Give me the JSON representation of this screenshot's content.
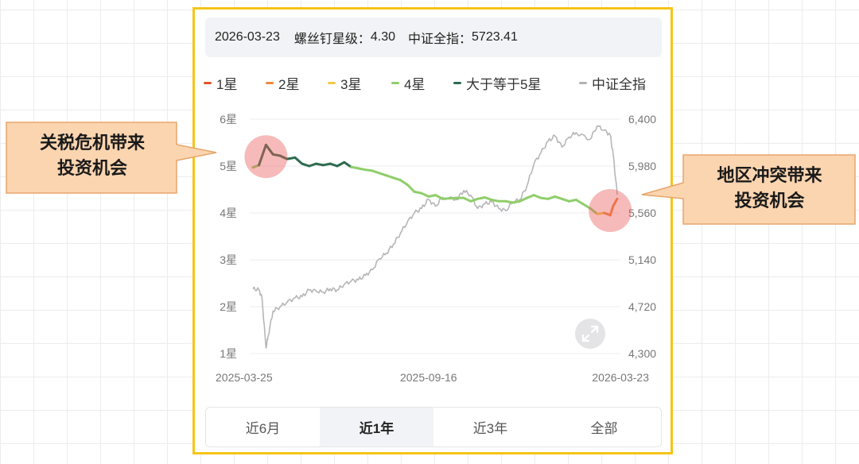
{
  "tooltip": {
    "date": "2026-03-23",
    "rating_label": "螺丝钉星级：",
    "rating_value": "4.30",
    "index_label": "中证全指：",
    "index_value": "5723.41"
  },
  "legend": [
    {
      "label": "1星",
      "color": "#e0542a"
    },
    {
      "label": "2星",
      "color": "#f0883e"
    },
    {
      "label": "3星",
      "color": "#f2c94c"
    },
    {
      "label": "4星",
      "color": "#8fce6a"
    },
    {
      "label": "大于等于5星",
      "color": "#2e6b4f"
    },
    {
      "label": "中证全指",
      "color": "#b3b3b3"
    }
  ],
  "callouts": {
    "left": "关税危机带来\n投资机会",
    "right": "地区冲突带来\n投资机会"
  },
  "tabs": [
    {
      "label": "近6月",
      "active": false
    },
    {
      "label": "近1年",
      "active": true
    },
    {
      "label": "近3年",
      "active": false
    },
    {
      "label": "全部",
      "active": false
    }
  ],
  "icons": {
    "expand": "expand-icon"
  },
  "chart_data": {
    "type": "line",
    "x_ticks": [
      "2025-03-25",
      "2025-09-16",
      "2026-03-23"
    ],
    "y_left_ticks": [
      "1星",
      "2星",
      "3星",
      "4星",
      "5星",
      "6星"
    ],
    "y_left_range": [
      1,
      6
    ],
    "y_right_ticks": [
      "4,300",
      "4,720",
      "5,140",
      "5,560",
      "5,980",
      "6,400"
    ],
    "y_right_range": [
      4300,
      6400
    ],
    "grid": true,
    "legend_position": "top",
    "series": [
      {
        "name": "螺丝钉星级",
        "axis": "left",
        "x": [
          "2025-03-25",
          "2025-03-31",
          "2025-04-07",
          "2025-04-14",
          "2025-04-21",
          "2025-04-28",
          "2025-05-06",
          "2025-05-13",
          "2025-05-20",
          "2025-05-27",
          "2025-06-03",
          "2025-06-10",
          "2025-06-17",
          "2025-06-24",
          "2025-07-01",
          "2025-07-08",
          "2025-07-15",
          "2025-07-22",
          "2025-07-29",
          "2025-08-05",
          "2025-08-12",
          "2025-08-19",
          "2025-08-26",
          "2025-09-02",
          "2025-09-09",
          "2025-09-16",
          "2025-09-23",
          "2025-09-30",
          "2025-10-14",
          "2025-10-21",
          "2025-10-28",
          "2025-11-04",
          "2025-11-11",
          "2025-11-18",
          "2025-11-25",
          "2025-12-02",
          "2025-12-09",
          "2025-12-16",
          "2025-12-23",
          "2025-12-30",
          "2026-01-06",
          "2026-01-13",
          "2026-01-20",
          "2026-01-27",
          "2026-02-03",
          "2026-02-10",
          "2026-02-24",
          "2026-03-03",
          "2026-03-10",
          "2026-03-16",
          "2026-03-19",
          "2026-03-23"
        ],
        "values": [
          4.97,
          5.02,
          5.45,
          5.25,
          5.22,
          5.15,
          5.18,
          5.05,
          5.0,
          5.05,
          5.02,
          5.05,
          5.0,
          5.08,
          4.98,
          4.95,
          4.92,
          4.9,
          4.85,
          4.8,
          4.75,
          4.7,
          4.6,
          4.45,
          4.42,
          4.35,
          4.38,
          4.3,
          4.32,
          4.32,
          4.25,
          4.3,
          4.33,
          4.28,
          4.25,
          4.25,
          4.22,
          4.25,
          4.32,
          4.38,
          4.32,
          4.3,
          4.35,
          4.3,
          4.25,
          4.28,
          4.1,
          3.98,
          4.0,
          3.95,
          4.15,
          4.3
        ]
      },
      {
        "name": "中证全指",
        "axis": "right",
        "x": [
          "2025-03-25",
          "2025-03-31",
          "2025-04-03",
          "2025-04-07",
          "2025-04-09",
          "2025-04-14",
          "2025-04-21",
          "2025-04-28",
          "2025-05-06",
          "2025-05-13",
          "2025-05-20",
          "2025-05-27",
          "2025-06-03",
          "2025-06-10",
          "2025-06-17",
          "2025-06-24",
          "2025-07-01",
          "2025-07-08",
          "2025-07-15",
          "2025-07-22",
          "2025-07-29",
          "2025-08-05",
          "2025-08-12",
          "2025-08-19",
          "2025-08-26",
          "2025-09-02",
          "2025-09-09",
          "2025-09-16",
          "2025-09-23",
          "2025-09-30",
          "2025-10-14",
          "2025-10-21",
          "2025-10-28",
          "2025-11-04",
          "2025-11-11",
          "2025-11-18",
          "2025-11-25",
          "2025-12-02",
          "2025-12-09",
          "2025-12-16",
          "2025-12-23",
          "2025-12-30",
          "2026-01-06",
          "2026-01-13",
          "2026-01-20",
          "2026-01-27",
          "2026-02-03",
          "2026-02-10",
          "2026-02-24",
          "2026-03-03",
          "2026-03-10",
          "2026-03-16",
          "2026-03-19",
          "2026-03-23"
        ],
        "values": [
          4880,
          4870,
          4800,
          4350,
          4450,
          4680,
          4720,
          4760,
          4800,
          4810,
          4870,
          4860,
          4850,
          4880,
          4870,
          4920,
          4950,
          4960,
          5000,
          5050,
          5150,
          5200,
          5280,
          5380,
          5480,
          5560,
          5600,
          5680,
          5620,
          5700,
          5680,
          5760,
          5720,
          5600,
          5640,
          5660,
          5600,
          5580,
          5660,
          5680,
          5800,
          6000,
          6100,
          6200,
          6250,
          6150,
          6240,
          6280,
          6220,
          6340,
          6300,
          6260,
          6080,
          5723.41
        ]
      }
    ]
  }
}
